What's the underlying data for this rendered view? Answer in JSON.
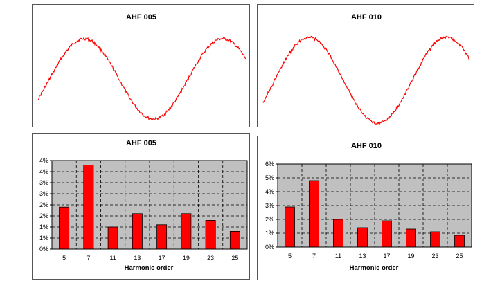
{
  "chart_data": [
    {
      "type": "line",
      "title": "AHF 005",
      "series": [
        {
          "color": "#ff0000",
          "shape": "noisy-sine",
          "start_phase_deg": -30,
          "cycles": 1.5
        }
      ]
    },
    {
      "type": "line",
      "title": "AHF 010",
      "series": [
        {
          "color": "#ff0000",
          "shape": "noisy-sine",
          "start_phase_deg": -30,
          "cycles": 1.5
        }
      ]
    },
    {
      "type": "bar",
      "title": "AHF 005",
      "xlabel": "Harmonic order",
      "ylabel": "",
      "categories": [
        "5",
        "7",
        "11",
        "13",
        "17",
        "19",
        "23",
        "25"
      ],
      "values": [
        1.9,
        3.8,
        1.0,
        1.6,
        1.1,
        1.6,
        1.3,
        0.8
      ],
      "yticks": [
        "0%",
        "1%",
        "1%",
        "2%",
        "2%",
        "3%",
        "3%",
        "4%",
        "4%"
      ],
      "ylim": [
        0,
        4
      ],
      "grid": true,
      "plot_bg": "#c0c0c0",
      "bar_color": "#ff0000"
    },
    {
      "type": "bar",
      "title": "AHF 010",
      "xlabel": "Harmonic order",
      "ylabel": "",
      "categories": [
        "5",
        "7",
        "11",
        "13",
        "17",
        "19",
        "23",
        "25"
      ],
      "values": [
        2.9,
        4.8,
        2.0,
        1.4,
        1.9,
        1.3,
        1.1,
        0.85
      ],
      "yticks": [
        "0%",
        "1%",
        "2%",
        "3%",
        "4%",
        "5%",
        "6%"
      ],
      "ylim": [
        0,
        6
      ],
      "grid": true,
      "plot_bg": "#c0c0c0",
      "bar_color": "#ff0000"
    }
  ]
}
